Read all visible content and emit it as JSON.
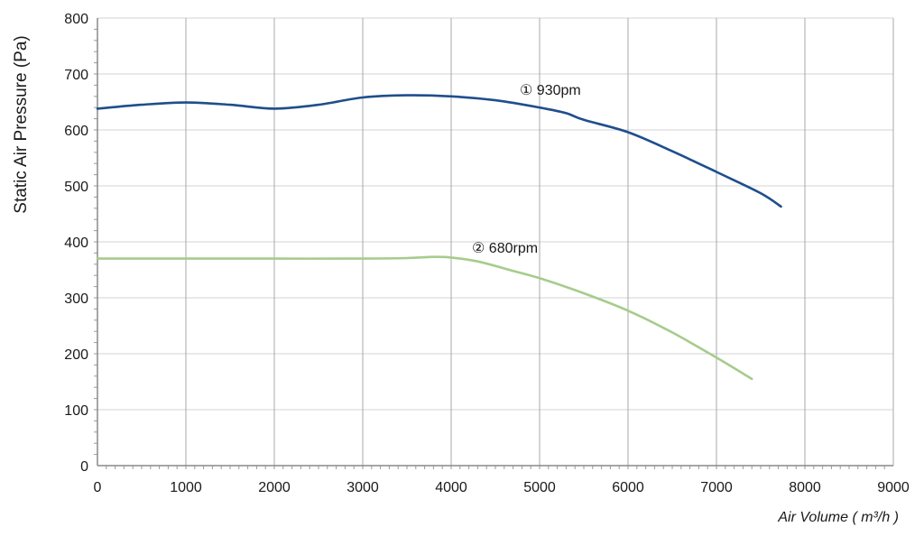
{
  "chart_data": {
    "type": "line",
    "xlabel": "Air Volume ( m³/h )",
    "ylabel": "Static Air Pressure  (Pa)",
    "xlim": [
      0,
      9000
    ],
    "ylim": [
      0,
      800
    ],
    "x_ticks": [
      0,
      1000,
      2000,
      3000,
      4000,
      5000,
      6000,
      7000,
      8000,
      9000
    ],
    "y_ticks": [
      0,
      100,
      200,
      300,
      400,
      500,
      600,
      700,
      800
    ],
    "grid": true,
    "legend": "none",
    "series": [
      {
        "name": "① 930pm",
        "color": "#1f4e8c",
        "x": [
          0,
          500,
          1000,
          1500,
          2000,
          2500,
          3000,
          3500,
          4000,
          4500,
          5000,
          5300,
          5500,
          6000,
          6500,
          7000,
          7500,
          7730
        ],
        "y": [
          638,
          645,
          649,
          645,
          638,
          645,
          658,
          662,
          660,
          653,
          640,
          630,
          618,
          596,
          562,
          525,
          487,
          463
        ]
      },
      {
        "name": "② 680rpm",
        "color": "#a6cc8c",
        "x": [
          0,
          1000,
          2000,
          3000,
          3500,
          3800,
          4000,
          4300,
          4700,
          5000,
          5500,
          6000,
          6500,
          7000,
          7400
        ],
        "y": [
          370,
          370,
          370,
          370,
          371,
          373,
          372,
          365,
          348,
          335,
          308,
          277,
          238,
          193,
          155
        ]
      }
    ]
  }
}
